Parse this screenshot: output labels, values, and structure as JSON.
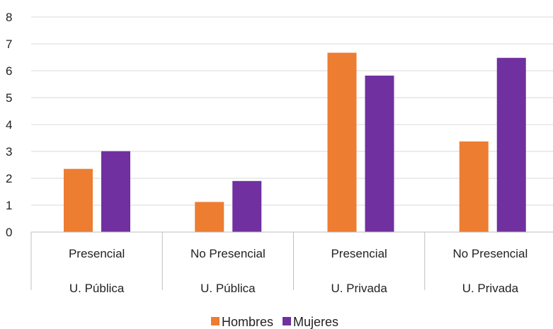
{
  "chart_data": {
    "type": "bar",
    "title": "",
    "xlabel": "",
    "ylabel": "",
    "ylim": [
      0,
      8
    ],
    "yticks": [
      0,
      1,
      2,
      3,
      4,
      5,
      6,
      7,
      8
    ],
    "grid": true,
    "legend_position": "bottom",
    "categories": [
      [
        "Presencial",
        "U. Pública"
      ],
      [
        "No Presencial",
        "U. Pública"
      ],
      [
        "Presencial",
        "U. Privada"
      ],
      [
        "No Presencial",
        "U. Privada"
      ]
    ],
    "series": [
      {
        "name": "Hombres",
        "color": "#ED7D31",
        "values": [
          2.35,
          1.12,
          6.67,
          3.37
        ]
      },
      {
        "name": "Mujeres",
        "color": "#7030A0",
        "values": [
          3.01,
          1.9,
          5.82,
          6.48
        ]
      }
    ]
  }
}
